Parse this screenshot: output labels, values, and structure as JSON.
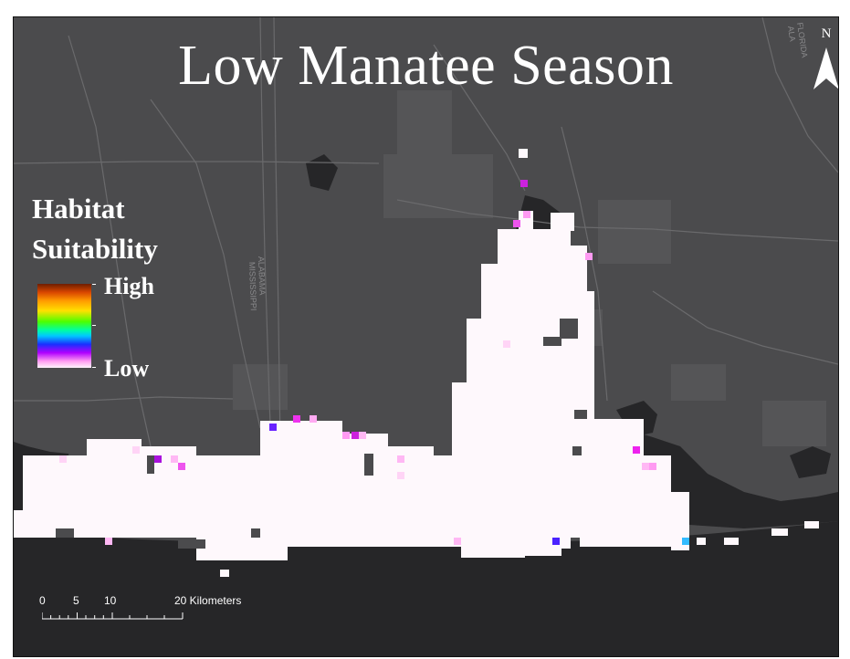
{
  "map": {
    "title": "Low Manatee Season",
    "north_label": "N",
    "place_labels": {
      "state_left_upper": "ALABAMA",
      "state_left_lower": "MISSISSIPPI",
      "state_right_upper": "ALA",
      "state_right_lower": "FLORIDA"
    },
    "colors": {
      "land": "#4b4b4d",
      "water": "#262628",
      "habitat_low": "#ffffff"
    }
  },
  "legend": {
    "title_line1": "Habitat",
    "title_line2": "Suitability",
    "high_label": "High",
    "low_label": "Low"
  },
  "scale_bar": {
    "labels": [
      "0",
      "5",
      "10",
      "20 Kilometers"
    ]
  }
}
